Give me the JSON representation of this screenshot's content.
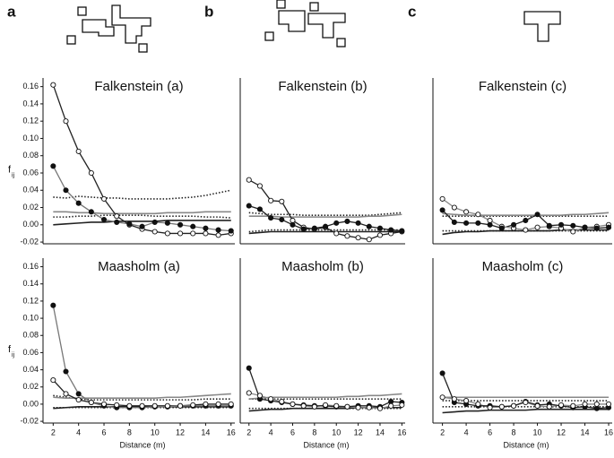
{
  "panel_labels": [
    "a",
    "b",
    "c"
  ],
  "chart_data": [
    {
      "type": "line",
      "title": "Falkenstein (a)",
      "ylabel": "f",
      "ylabel_sub": "ij",
      "x": [
        2,
        3,
        4,
        5,
        6,
        7,
        8,
        9,
        10,
        11,
        12,
        13,
        14,
        15,
        16
      ],
      "xlim": [
        1.2,
        16.3
      ],
      "ylim": [
        -0.022,
        0.17
      ],
      "yticks": [
        -0.02,
        {
          "value": 0,
          "label": "0.00"
        },
        0.02,
        0.04,
        0.06,
        0.08,
        {
          "value": 0.1,
          "label": "0.10"
        },
        0.12,
        0.14,
        0.16
      ],
      "series": [
        {
          "color": "#222222",
          "marker": "open",
          "values": [
            0.162,
            0.12,
            0.085,
            0.06,
            0.03,
            0.01,
            0.0,
            -0.005,
            -0.008,
            -0.01,
            -0.01,
            -0.01,
            -0.01,
            -0.012,
            -0.01
          ]
        },
        {
          "color": "#777777",
          "marker": "filled",
          "values": [
            0.068,
            0.04,
            0.025,
            0.015,
            0.006,
            0.003,
            0.001,
            -0.002,
            0.003,
            0.002,
            0.0,
            -0.002,
            -0.004,
            -0.006,
            -0.007
          ]
        },
        {
          "color": "#222222",
          "dash": "dotted",
          "values": [
            0.032,
            0.031,
            0.033,
            0.032,
            0.031,
            0.031,
            0.03,
            0.03,
            0.03,
            0.03,
            0.031,
            0.032,
            0.034,
            0.037,
            0.04
          ]
        },
        {
          "color": "#888888",
          "values": [
            0.015,
            0.015,
            0.014,
            0.014,
            0.013,
            0.013,
            0.013,
            0.013,
            0.013,
            0.014,
            0.014,
            0.014,
            0.015,
            0.015,
            0.015
          ]
        },
        {
          "color": "#222222",
          "dash": "dotted",
          "values": [
            0.009,
            0.009,
            0.01,
            0.01,
            0.011,
            0.011,
            0.011,
            0.011,
            0.01,
            0.01,
            0.01,
            0.01,
            0.009,
            0.009,
            0.008
          ]
        },
        {
          "color": "#222222",
          "values": [
            0.0,
            0.001,
            0.002,
            0.003,
            0.003,
            0.004,
            0.004,
            0.004,
            0.004,
            0.005,
            0.005,
            0.005,
            0.005,
            0.005,
            0.005
          ]
        }
      ]
    },
    {
      "type": "line",
      "title": "Falkenstein (b)",
      "x": [
        2,
        3,
        4,
        5,
        6,
        7,
        8,
        9,
        10,
        11,
        12,
        13,
        14,
        15,
        16
      ],
      "xlim": [
        1.2,
        16.3
      ],
      "ylim": [
        -0.022,
        0.17
      ],
      "series": [
        {
          "color": "#222222",
          "marker": "open",
          "values": [
            0.052,
            0.045,
            0.028,
            0.027,
            0.005,
            -0.003,
            -0.005,
            -0.003,
            -0.01,
            -0.013,
            -0.015,
            -0.017,
            -0.012,
            -0.01,
            -0.008
          ]
        },
        {
          "color": "#222222",
          "marker": "filled",
          "values": [
            0.022,
            0.018,
            0.008,
            0.006,
            0.0,
            -0.005,
            -0.004,
            -0.002,
            0.002,
            0.004,
            0.002,
            -0.002,
            -0.004,
            -0.006,
            -0.007
          ]
        },
        {
          "color": "#888888",
          "values": [
            0.01,
            0.01,
            0.01,
            0.009,
            0.009,
            0.009,
            0.009,
            0.009,
            0.009,
            0.009,
            0.009,
            0.01,
            0.01,
            0.011,
            0.012
          ]
        },
        {
          "color": "#222222",
          "dash": "dotted",
          "values": [
            0.014,
            0.013,
            0.012,
            0.012,
            0.012,
            0.011,
            0.011,
            0.011,
            0.011,
            0.011,
            0.011,
            0.011,
            0.012,
            0.013,
            0.014
          ]
        },
        {
          "color": "#222222",
          "dash": "dotted",
          "values": [
            -0.008,
            -0.007,
            -0.006,
            -0.006,
            -0.006,
            -0.006,
            -0.006,
            -0.006,
            -0.006,
            -0.006,
            -0.006,
            -0.006,
            -0.006,
            -0.006,
            -0.006
          ]
        },
        {
          "color": "#222222",
          "values": [
            -0.01,
            -0.009,
            -0.008,
            -0.008,
            -0.008,
            -0.008,
            -0.008,
            -0.008,
            -0.008,
            -0.008,
            -0.008,
            -0.008,
            -0.008,
            -0.008,
            -0.008
          ]
        }
      ]
    },
    {
      "type": "line",
      "title": "Falkenstein (c)",
      "x": [
        2,
        3,
        4,
        5,
        6,
        7,
        8,
        9,
        10,
        11,
        12,
        13,
        14,
        15,
        16
      ],
      "xlim": [
        1.2,
        16.3
      ],
      "ylim": [
        -0.022,
        0.17
      ],
      "series": [
        {
          "color": "#888888",
          "marker": "open",
          "values": [
            0.03,
            0.02,
            0.015,
            0.012,
            0.005,
            -0.002,
            -0.004,
            -0.006,
            -0.003,
            -0.002,
            -0.004,
            -0.008,
            -0.003,
            -0.002,
            0.0
          ]
        },
        {
          "color": "#222222",
          "marker": "filled",
          "values": [
            0.017,
            0.003,
            0.002,
            0.002,
            0.0,
            -0.004,
            0.0,
            0.005,
            0.012,
            -0.001,
            0.0,
            -0.001,
            -0.003,
            -0.004,
            -0.003
          ]
        },
        {
          "color": "#888888",
          "values": [
            0.013,
            0.012,
            0.011,
            0.011,
            0.011,
            0.011,
            0.011,
            0.011,
            0.011,
            0.011,
            0.011,
            0.012,
            0.012,
            0.013,
            0.014
          ]
        },
        {
          "color": "#222222",
          "dash": "dotted",
          "values": [
            0.01,
            0.01,
            0.01,
            0.01,
            0.01,
            0.01,
            0.01,
            0.01,
            0.01,
            0.01,
            0.01,
            0.01,
            0.01,
            0.01,
            0.01
          ]
        },
        {
          "color": "#222222",
          "dash": "dotted",
          "values": [
            -0.007,
            -0.007,
            -0.007,
            -0.007,
            -0.007,
            -0.007,
            -0.007,
            -0.007,
            -0.007,
            -0.007,
            -0.007,
            -0.007,
            -0.007,
            -0.007,
            -0.007
          ]
        },
        {
          "color": "#222222",
          "values": [
            -0.011,
            -0.009,
            -0.008,
            -0.008,
            -0.007,
            -0.007,
            -0.007,
            -0.007,
            -0.007,
            -0.007,
            -0.006,
            -0.006,
            -0.006,
            -0.006,
            -0.006
          ]
        }
      ]
    },
    {
      "type": "line",
      "title": "Maasholm (a)",
      "ylabel": "f",
      "ylabel_sub": "ij",
      "xlabel": "Distance (m)",
      "x": [
        2,
        3,
        4,
        5,
        6,
        7,
        8,
        9,
        10,
        11,
        12,
        13,
        14,
        15,
        16
      ],
      "xlim": [
        1.2,
        16.3
      ],
      "ylim": [
        -0.022,
        0.17
      ],
      "xticks": [
        2,
        4,
        6,
        8,
        10,
        12,
        14,
        16
      ],
      "yticks": [
        -0.02,
        {
          "value": 0,
          "label": "0.00"
        },
        0.02,
        0.04,
        0.06,
        0.08,
        {
          "value": 0.1,
          "label": "0.10"
        },
        0.12,
        0.14,
        0.16
      ],
      "series": [
        {
          "color": "#777777",
          "marker": "filled",
          "values": [
            0.115,
            0.038,
            0.012,
            0.002,
            -0.002,
            -0.004,
            -0.004,
            -0.004,
            -0.003,
            -0.003,
            -0.002,
            -0.002,
            -0.002,
            -0.002,
            -0.002
          ]
        },
        {
          "color": "#222222",
          "marker": "open",
          "values": [
            0.028,
            0.012,
            0.005,
            0.002,
            0.0,
            -0.001,
            -0.002,
            -0.002,
            -0.002,
            -0.002,
            -0.002,
            -0.001,
            0.0,
            0.0,
            0.0
          ]
        },
        {
          "color": "#888888",
          "values": [
            0.008,
            0.007,
            0.007,
            0.007,
            0.007,
            0.007,
            0.007,
            0.007,
            0.007,
            0.008,
            0.008,
            0.009,
            0.01,
            0.011,
            0.012
          ]
        },
        {
          "color": "#222222",
          "dash": "dotted",
          "values": [
            0.01,
            0.008,
            0.006,
            0.005,
            0.005,
            0.005,
            0.005,
            0.005,
            0.005,
            0.005,
            0.005,
            0.005,
            0.006,
            0.006,
            0.006
          ]
        },
        {
          "color": "#222222",
          "dash": "dotted",
          "values": [
            -0.004,
            -0.004,
            -0.004,
            -0.004,
            -0.004,
            -0.004,
            -0.004,
            -0.004,
            -0.004,
            -0.004,
            -0.004,
            -0.004,
            -0.004,
            -0.004,
            -0.004
          ]
        },
        {
          "color": "#222222",
          "values": [
            -0.005,
            -0.004,
            -0.003,
            -0.003,
            -0.003,
            -0.003,
            -0.003,
            -0.003,
            -0.003,
            -0.003,
            -0.003,
            -0.003,
            -0.003,
            -0.003,
            -0.003
          ]
        }
      ]
    },
    {
      "type": "line",
      "title": "Maasholm (b)",
      "xlabel": "Distance (m)",
      "x": [
        2,
        3,
        4,
        5,
        6,
        7,
        8,
        9,
        10,
        11,
        12,
        13,
        14,
        15,
        16
      ],
      "xlim": [
        1.2,
        16.3
      ],
      "ylim": [
        -0.022,
        0.17
      ],
      "xticks": [
        2,
        4,
        6,
        8,
        10,
        12,
        14,
        16
      ],
      "series": [
        {
          "color": "#222222",
          "marker": "filled",
          "values": [
            0.042,
            0.006,
            0.004,
            0.002,
            0.0,
            -0.001,
            -0.002,
            -0.002,
            -0.003,
            -0.003,
            -0.002,
            -0.002,
            -0.003,
            0.003,
            0.002
          ]
        },
        {
          "color": "#888888",
          "marker": "open",
          "values": [
            0.013,
            0.01,
            0.006,
            0.003,
            0.0,
            -0.002,
            -0.003,
            -0.001,
            -0.002,
            -0.003,
            -0.004,
            -0.004,
            -0.005,
            -0.002,
            -0.001
          ]
        },
        {
          "color": "#888888",
          "values": [
            0.006,
            0.007,
            0.008,
            0.008,
            0.008,
            0.008,
            0.008,
            0.008,
            0.008,
            0.009,
            0.009,
            0.01,
            0.01,
            0.011,
            0.012
          ]
        },
        {
          "color": "#222222",
          "dash": "dotted",
          "values": [
            0.006,
            0.006,
            0.006,
            0.006,
            0.006,
            0.006,
            0.006,
            0.006,
            0.006,
            0.006,
            0.006,
            0.006,
            0.006,
            0.006,
            0.006
          ]
        },
        {
          "color": "#222222",
          "dash": "dotted",
          "values": [
            -0.005,
            -0.005,
            -0.005,
            -0.005,
            -0.005,
            -0.005,
            -0.005,
            -0.005,
            -0.005,
            -0.005,
            -0.005,
            -0.005,
            -0.005,
            -0.005,
            -0.005
          ]
        },
        {
          "color": "#222222",
          "values": [
            -0.008,
            -0.007,
            -0.006,
            -0.006,
            -0.005,
            -0.005,
            -0.005,
            -0.005,
            -0.005,
            -0.005,
            -0.004,
            -0.004,
            -0.004,
            -0.004,
            -0.004
          ]
        }
      ]
    },
    {
      "type": "line",
      "title": "Maasholm (c)",
      "xlabel": "Distance (m)",
      "x": [
        2,
        3,
        4,
        5,
        6,
        7,
        8,
        9,
        10,
        11,
        12,
        13,
        14,
        15,
        16
      ],
      "xlim": [
        1.2,
        16.3
      ],
      "ylim": [
        -0.022,
        0.17
      ],
      "xticks": [
        2,
        4,
        6,
        8,
        10,
        12,
        14,
        16
      ],
      "series": [
        {
          "color": "#222222",
          "marker": "filled",
          "values": [
            0.036,
            0.002,
            0.0,
            -0.002,
            -0.002,
            -0.003,
            -0.002,
            0.003,
            -0.001,
            0.0,
            -0.002,
            -0.004,
            -0.003,
            -0.005,
            -0.004
          ]
        },
        {
          "color": "#888888",
          "marker": "open",
          "values": [
            0.008,
            0.006,
            0.004,
            0.0,
            -0.004,
            -0.003,
            -0.002,
            0.002,
            -0.002,
            -0.003,
            -0.001,
            -0.002,
            0.0,
            0.0,
            0.0
          ]
        },
        {
          "color": "#888888",
          "values": [
            0.008,
            0.008,
            0.008,
            0.008,
            0.008,
            0.008,
            0.008,
            0.008,
            0.008,
            0.008,
            0.008,
            0.008,
            0.008,
            0.008,
            0.008
          ]
        },
        {
          "color": "#222222",
          "dash": "dotted",
          "values": [
            0.004,
            0.004,
            0.004,
            0.004,
            0.004,
            0.004,
            0.004,
            0.004,
            0.004,
            0.004,
            0.004,
            0.004,
            0.004,
            0.004,
            0.004
          ]
        },
        {
          "color": "#222222",
          "dash": "dotted",
          "values": [
            -0.003,
            -0.003,
            -0.003,
            -0.003,
            -0.003,
            -0.003,
            -0.003,
            -0.003,
            -0.003,
            -0.003,
            -0.003,
            -0.003,
            -0.003,
            -0.003,
            -0.003
          ]
        },
        {
          "color": "#222222",
          "values": [
            -0.01,
            -0.009,
            -0.008,
            -0.008,
            -0.007,
            -0.007,
            -0.007,
            -0.007,
            -0.006,
            -0.006,
            -0.006,
            -0.006,
            -0.006,
            -0.006,
            -0.006
          ]
        }
      ]
    }
  ]
}
